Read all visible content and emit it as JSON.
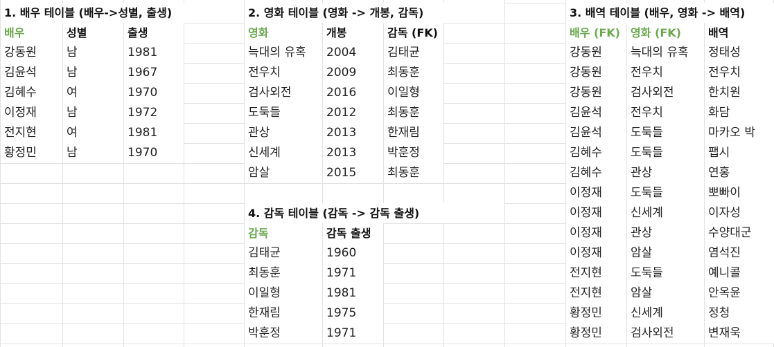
{
  "columns": [
    0,
    90,
    178,
    265,
    352,
    465,
    553,
    640,
    728,
    816,
    904,
    1016,
    1117
  ],
  "colors": {
    "key_header": "#6aa84f",
    "gridline": "#e2e2e2",
    "text": "#222222"
  },
  "tables": [
    {
      "id": "actor",
      "title": "1. 배우 테이블 (배우->성별, 출생)",
      "title_col": 0,
      "start_col": 0,
      "header_row": 1,
      "headers": [
        {
          "text": "배우",
          "key": true
        },
        {
          "text": "성별",
          "key": false
        },
        {
          "text": "출생",
          "key": false
        }
      ],
      "rows": [
        [
          "강동원",
          "남",
          "1981"
        ],
        [
          "김윤석",
          "남",
          "1967"
        ],
        [
          "김혜수",
          "여",
          "1970"
        ],
        [
          "이정재",
          "남",
          "1972"
        ],
        [
          "전지현",
          "여",
          "1981"
        ],
        [
          "황정민",
          "남",
          "1970"
        ]
      ]
    },
    {
      "id": "movie",
      "title": "2. 영화 테이블 (영화 -> 개봉, 감독)",
      "title_col": 4,
      "start_col": 4,
      "header_row": 1,
      "headers": [
        {
          "text": "영화",
          "key": true
        },
        {
          "text": "개봉",
          "key": false
        },
        {
          "text": "감독 (FK)",
          "key": false
        }
      ],
      "rows": [
        [
          "늑대의 유혹",
          "2004",
          "김태균"
        ],
        [
          "전우치",
          "2009",
          "최동훈"
        ],
        [
          "검사외전",
          "2016",
          "이일형"
        ],
        [
          "도둑들",
          "2012",
          "최동훈"
        ],
        [
          "관상",
          "2013",
          "한재림"
        ],
        [
          "신세계",
          "2013",
          "박훈정"
        ],
        [
          "암살",
          "2015",
          "최동훈"
        ]
      ]
    },
    {
      "id": "role",
      "title": "3. 배역 테이블 (배우, 영화 -> 배역)",
      "title_col": 9,
      "start_col": 9,
      "header_row": 1,
      "headers": [
        {
          "text": "배우 (FK)",
          "key": true
        },
        {
          "text": "영화 (FK)",
          "key": true
        },
        {
          "text": "배역",
          "key": false
        }
      ],
      "rows": [
        [
          "강동원",
          "늑대의 유혹",
          "정태성"
        ],
        [
          "강동원",
          "전우치",
          "전우치"
        ],
        [
          "강동원",
          "검사외전",
          "한치원"
        ],
        [
          "김윤석",
          "전우치",
          "화담"
        ],
        [
          "김윤석",
          "도둑들",
          "마카오 박"
        ],
        [
          "김혜수",
          "도둑들",
          "팹시"
        ],
        [
          "김혜수",
          "관상",
          "연홍"
        ],
        [
          "이정재",
          "도둑들",
          "뽀빠이"
        ],
        [
          "이정재",
          "신세계",
          "이자성"
        ],
        [
          "이정재",
          "관상",
          "수양대군"
        ],
        [
          "이정재",
          "암살",
          "염석진"
        ],
        [
          "전지현",
          "도둑들",
          "예니콜"
        ],
        [
          "전지현",
          "암살",
          "안옥윤"
        ],
        [
          "황정민",
          "신세계",
          "정청"
        ],
        [
          "황정민",
          "검사외전",
          "변재욱"
        ]
      ]
    },
    {
      "id": "director",
      "title": "4. 감독 테이블 (감독 -> 감독 출생)",
      "title_col": 4,
      "start_col": 4,
      "header_row": 11,
      "headers": [
        {
          "text": "감독",
          "key": true
        },
        {
          "text": "감독 출생",
          "key": false
        }
      ],
      "rows": [
        [
          "김태균",
          "1960"
        ],
        [
          "최동훈",
          "1971"
        ],
        [
          "이일형",
          "1981"
        ],
        [
          "한재림",
          "1975"
        ],
        [
          "박훈정",
          "1971"
        ]
      ]
    }
  ]
}
